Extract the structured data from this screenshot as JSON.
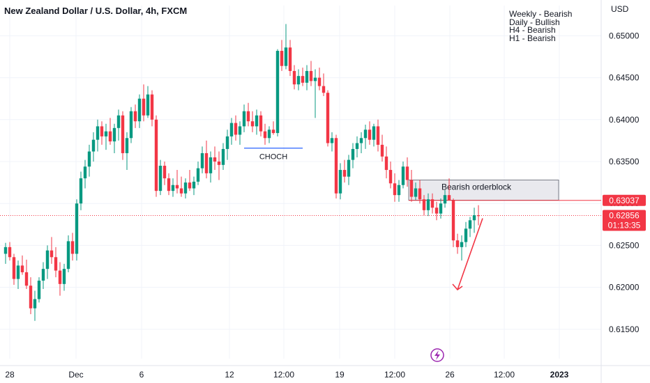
{
  "header": {
    "title": "New Zealand Dollar / U.S. Dollar, 4h, FXCM"
  },
  "bias": [
    "Weekly - Bearish",
    "Daily - Bullish",
    "H4 - Bearish",
    "H1 - Bearish"
  ],
  "colors": {
    "up": "#089981",
    "down": "#f23645",
    "choch": "#2962ff",
    "grid": "#f0f3fa",
    "text": "#131722"
  },
  "icons": {
    "event": "lightning-icon"
  },
  "chart_data": {
    "type": "candlestick",
    "currency_label": "USD",
    "ylim": [
      0.6115,
      0.6536
    ],
    "y_ticks": [
      0.615,
      0.62,
      0.625,
      0.63,
      0.635,
      0.64,
      0.645,
      0.65
    ],
    "y_tick_labels": [
      "0.61500",
      "0.62000",
      "0.62500",
      "0.63000",
      "0.63500",
      "0.64000",
      "0.64500",
      "0.65000"
    ],
    "x_tick_labels": [
      "28",
      "Dec",
      "6",
      "12",
      "12:00",
      "19",
      "12:00",
      "26",
      "12:00",
      "2023"
    ],
    "price_tags": [
      {
        "price": 0.63037,
        "label": "0.63037"
      },
      {
        "price": 0.62856,
        "label": "0.62856",
        "sub": "01:13:35"
      }
    ],
    "annotations": {
      "choch": {
        "label": "CHOCH",
        "price": 0.6366
      },
      "orderblock": {
        "label": "Bearish orderblock",
        "top": 0.6328,
        "bottom": 0.6304
      }
    },
    "candles": [
      [
        0.624,
        0.6253,
        0.6228,
        0.6248
      ],
      [
        0.6248,
        0.6254,
        0.6232,
        0.6236
      ],
      [
        0.6236,
        0.624,
        0.6203,
        0.621
      ],
      [
        0.621,
        0.6232,
        0.6198,
        0.6226
      ],
      [
        0.6226,
        0.6238,
        0.6215,
        0.6218
      ],
      [
        0.6218,
        0.6233,
        0.6198,
        0.6202
      ],
      [
        0.6202,
        0.6212,
        0.6168,
        0.6175
      ],
      [
        0.6175,
        0.6196,
        0.616,
        0.6186
      ],
      [
        0.6186,
        0.6212,
        0.6182,
        0.6208
      ],
      [
        0.6208,
        0.623,
        0.6198,
        0.6222
      ],
      [
        0.6222,
        0.625,
        0.621,
        0.6244
      ],
      [
        0.6244,
        0.626,
        0.6228,
        0.6236
      ],
      [
        0.6236,
        0.6248,
        0.6212,
        0.622
      ],
      [
        0.622,
        0.623,
        0.619,
        0.6204
      ],
      [
        0.6204,
        0.6228,
        0.6196,
        0.6222
      ],
      [
        0.6222,
        0.6262,
        0.6218,
        0.6255
      ],
      [
        0.6255,
        0.6265,
        0.6232,
        0.624
      ],
      [
        0.624,
        0.6305,
        0.6232,
        0.63
      ],
      [
        0.63,
        0.6338,
        0.6292,
        0.633
      ],
      [
        0.633,
        0.6352,
        0.6318,
        0.6344
      ],
      [
        0.6344,
        0.637,
        0.6332,
        0.6362
      ],
      [
        0.6362,
        0.6385,
        0.635,
        0.6376
      ],
      [
        0.6376,
        0.64,
        0.6362,
        0.6392
      ],
      [
        0.6392,
        0.6398,
        0.637,
        0.638
      ],
      [
        0.638,
        0.6395,
        0.6364,
        0.6386
      ],
      [
        0.6386,
        0.6402,
        0.637,
        0.6374
      ],
      [
        0.6374,
        0.6395,
        0.636,
        0.639
      ],
      [
        0.639,
        0.6412,
        0.6375,
        0.6405
      ],
      [
        0.6405,
        0.641,
        0.6352,
        0.636
      ],
      [
        0.636,
        0.6385,
        0.634,
        0.6378
      ],
      [
        0.6378,
        0.6415,
        0.6372,
        0.641
      ],
      [
        0.641,
        0.6418,
        0.639,
        0.6398
      ],
      [
        0.6398,
        0.643,
        0.639,
        0.6425
      ],
      [
        0.6425,
        0.6442,
        0.6398,
        0.6405
      ],
      [
        0.6405,
        0.644,
        0.6402,
        0.643
      ],
      [
        0.643,
        0.6435,
        0.6392,
        0.64
      ],
      [
        0.64,
        0.6405,
        0.6308,
        0.6315
      ],
      [
        0.6315,
        0.6352,
        0.631,
        0.6345
      ],
      [
        0.6345,
        0.635,
        0.6322,
        0.633
      ],
      [
        0.633,
        0.6336,
        0.631,
        0.6315
      ],
      [
        0.6315,
        0.633,
        0.6308,
        0.6322
      ],
      [
        0.6322,
        0.634,
        0.6312,
        0.6318
      ],
      [
        0.6318,
        0.6332,
        0.6308,
        0.6312
      ],
      [
        0.6312,
        0.633,
        0.6306,
        0.6325
      ],
      [
        0.6325,
        0.634,
        0.6315,
        0.6318
      ],
      [
        0.6318,
        0.6332,
        0.631,
        0.6326
      ],
      [
        0.6326,
        0.635,
        0.6322,
        0.6342
      ],
      [
        0.6342,
        0.6368,
        0.6336,
        0.636
      ],
      [
        0.636,
        0.6375,
        0.633,
        0.6336
      ],
      [
        0.6336,
        0.6362,
        0.6325,
        0.6355
      ],
      [
        0.6355,
        0.6368,
        0.634,
        0.635
      ],
      [
        0.635,
        0.6362,
        0.6328,
        0.6346
      ],
      [
        0.6346,
        0.6372,
        0.634,
        0.6365
      ],
      [
        0.6365,
        0.6388,
        0.6352,
        0.638
      ],
      [
        0.638,
        0.6402,
        0.637,
        0.6396
      ],
      [
        0.6396,
        0.6405,
        0.6375,
        0.6382
      ],
      [
        0.6382,
        0.6398,
        0.637,
        0.6392
      ],
      [
        0.6392,
        0.6418,
        0.6385,
        0.641
      ],
      [
        0.641,
        0.642,
        0.6392,
        0.6398
      ],
      [
        0.6398,
        0.641,
        0.6385,
        0.6392
      ],
      [
        0.6392,
        0.6412,
        0.6382,
        0.6405
      ],
      [
        0.6405,
        0.641,
        0.638,
        0.6386
      ],
      [
        0.6386,
        0.6395,
        0.637,
        0.6378
      ],
      [
        0.6378,
        0.6392,
        0.6372,
        0.6388
      ],
      [
        0.6388,
        0.6398,
        0.6382,
        0.6384
      ],
      [
        0.6384,
        0.6484,
        0.638,
        0.6482
      ],
      [
        0.6482,
        0.6495,
        0.6458,
        0.6464
      ],
      [
        0.6464,
        0.6514,
        0.646,
        0.6486
      ],
      [
        0.6486,
        0.6495,
        0.6452,
        0.6458
      ],
      [
        0.6458,
        0.6465,
        0.6436,
        0.6442
      ],
      [
        0.6442,
        0.646,
        0.6435,
        0.6452
      ],
      [
        0.6452,
        0.6462,
        0.644,
        0.6444
      ],
      [
        0.6444,
        0.6465,
        0.6435,
        0.6458
      ],
      [
        0.6458,
        0.647,
        0.644,
        0.6446
      ],
      [
        0.6446,
        0.646,
        0.6402,
        0.645
      ],
      [
        0.645,
        0.6462,
        0.6435,
        0.644
      ],
      [
        0.644,
        0.6455,
        0.6428,
        0.6432
      ],
      [
        0.6432,
        0.6435,
        0.6368,
        0.6372
      ],
      [
        0.6372,
        0.6385,
        0.6362,
        0.6378
      ],
      [
        0.6378,
        0.6382,
        0.6306,
        0.6312
      ],
      [
        0.6312,
        0.6348,
        0.6305,
        0.634
      ],
      [
        0.634,
        0.6352,
        0.6325,
        0.6332
      ],
      [
        0.6332,
        0.6358,
        0.6322,
        0.6352
      ],
      [
        0.6352,
        0.6372,
        0.6342,
        0.6365
      ],
      [
        0.6365,
        0.638,
        0.6355,
        0.6372
      ],
      [
        0.6372,
        0.6385,
        0.636,
        0.6378
      ],
      [
        0.6378,
        0.6394,
        0.6365,
        0.6388
      ],
      [
        0.6388,
        0.6398,
        0.637,
        0.6376
      ],
      [
        0.6376,
        0.6395,
        0.6368,
        0.6392
      ],
      [
        0.6392,
        0.64,
        0.6362,
        0.637
      ],
      [
        0.637,
        0.6382,
        0.635,
        0.6356
      ],
      [
        0.6356,
        0.6368,
        0.633,
        0.634
      ],
      [
        0.634,
        0.635,
        0.6318,
        0.6324
      ],
      [
        0.6324,
        0.6336,
        0.6302,
        0.631
      ],
      [
        0.631,
        0.6328,
        0.6302,
        0.6322
      ],
      [
        0.6322,
        0.635,
        0.6318,
        0.6344
      ],
      [
        0.6344,
        0.6355,
        0.632,
        0.6328
      ],
      [
        0.6328,
        0.634,
        0.6302,
        0.6308
      ],
      [
        0.6308,
        0.6325,
        0.6304,
        0.6318
      ],
      [
        0.6318,
        0.6328,
        0.63,
        0.6305
      ],
      [
        0.6305,
        0.631,
        0.6286,
        0.6292
      ],
      [
        0.6292,
        0.6312,
        0.6285,
        0.6305
      ],
      [
        0.6305,
        0.6312,
        0.6288,
        0.6295
      ],
      [
        0.6295,
        0.6302,
        0.628,
        0.6288
      ],
      [
        0.6288,
        0.6306,
        0.6282,
        0.63
      ],
      [
        0.63,
        0.6316,
        0.6295,
        0.631
      ],
      [
        0.631,
        0.633,
        0.6304,
        0.6304
      ],
      [
        0.6304,
        0.6306,
        0.6248,
        0.6256
      ],
      [
        0.6256,
        0.6264,
        0.624,
        0.6248
      ],
      [
        0.6248,
        0.6262,
        0.6232,
        0.6254
      ],
      [
        0.6254,
        0.6278,
        0.6248,
        0.627
      ],
      [
        0.627,
        0.6284,
        0.626,
        0.628
      ],
      [
        0.628,
        0.6295,
        0.6265,
        0.6286
      ],
      [
        0.6286,
        0.6298,
        0.6274,
        0.6285
      ]
    ]
  }
}
